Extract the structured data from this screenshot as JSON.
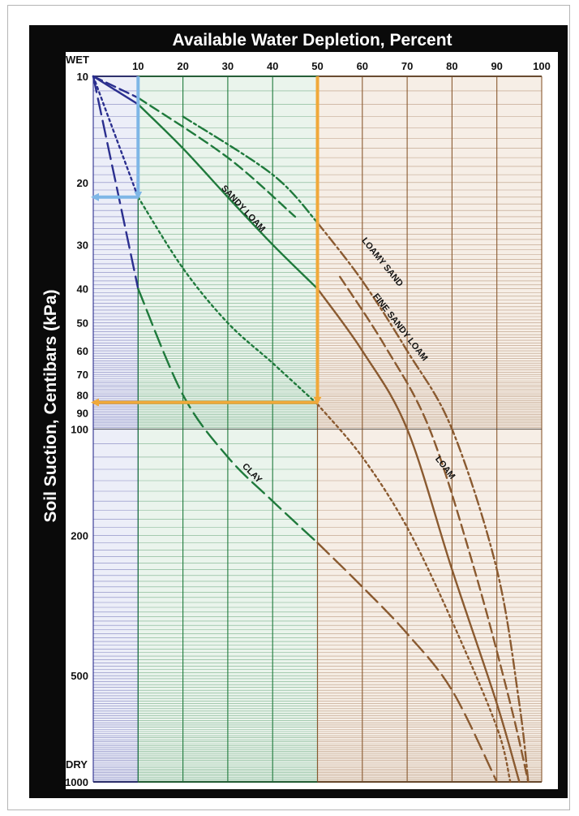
{
  "chart_data": {
    "type": "line",
    "title": "Available Water Depletion, Percent",
    "xlabel": "Available Water Depletion, Percent",
    "ylabel": "Soil Suction, Centibars (kPa)",
    "x_scale": "linear",
    "y_scale": "log",
    "xlim": [
      0,
      100
    ],
    "ylim": [
      10,
      1000
    ],
    "x_ticks": [
      "10",
      "20",
      "30",
      "40",
      "50",
      "60",
      "70",
      "80",
      "90",
      "100"
    ],
    "y_ticks": [
      "10",
      "20",
      "30",
      "40",
      "50",
      "60",
      "70",
      "80",
      "90",
      "100",
      "200",
      "500",
      "1000"
    ],
    "wet_label": "WET",
    "dry_label": "DRY",
    "grid": true,
    "zones": [
      {
        "x_range": [
          0,
          10
        ],
        "color": "#2b2f8f"
      },
      {
        "x_range": [
          10,
          50
        ],
        "color": "#1f7a3c"
      },
      {
        "x_range": [
          50,
          100
        ],
        "color": "#8a5a30"
      }
    ],
    "series": [
      {
        "name": "LOAMY SAND",
        "style": "dash-dot",
        "points": [
          [
            0,
            10
          ],
          [
            20,
            13
          ],
          [
            40,
            19
          ],
          [
            50,
            26
          ],
          [
            60,
            38
          ],
          [
            70,
            60
          ],
          [
            80,
            100
          ],
          [
            90,
            250
          ],
          [
            95,
            600
          ],
          [
            97,
            1000
          ]
        ]
      },
      {
        "name": "FINE SANDY LOAM",
        "style": "dashed",
        "points": [
          [
            0,
            10
          ],
          [
            10,
            11.5
          ],
          [
            30,
            17
          ],
          [
            45,
            25
          ],
          [
            55,
            37
          ],
          [
            65,
            58
          ],
          [
            75,
            100
          ],
          [
            85,
            250
          ],
          [
            93,
            600
          ],
          [
            97,
            1000
          ]
        ]
      },
      {
        "name": "SANDY LOAM",
        "style": "solid",
        "points": [
          [
            0,
            10
          ],
          [
            10,
            12
          ],
          [
            20,
            16
          ],
          [
            30,
            22
          ],
          [
            40,
            30
          ],
          [
            50,
            40
          ],
          [
            60,
            60
          ],
          [
            70,
            100
          ],
          [
            80,
            250
          ],
          [
            90,
            600
          ],
          [
            95,
            1000
          ]
        ]
      },
      {
        "name": "LOAM",
        "style": "dotted",
        "points": [
          [
            0,
            10
          ],
          [
            10,
            22
          ],
          [
            20,
            35
          ],
          [
            30,
            50
          ],
          [
            40,
            65
          ],
          [
            50,
            85
          ],
          [
            60,
            120
          ],
          [
            70,
            190
          ],
          [
            80,
            350
          ],
          [
            90,
            700
          ],
          [
            93,
            1000
          ]
        ]
      },
      {
        "name": "CLAY",
        "style": "long-dash",
        "points": [
          [
            0,
            10
          ],
          [
            5,
            20
          ],
          [
            10,
            40
          ],
          [
            20,
            80
          ],
          [
            30,
            120
          ],
          [
            40,
            160
          ],
          [
            50,
            210
          ],
          [
            60,
            280
          ],
          [
            70,
            380
          ],
          [
            80,
            550
          ],
          [
            90,
            1000
          ]
        ]
      }
    ],
    "annotations": [
      {
        "type": "arrow",
        "color": "#7eb6e6",
        "from": [
          10,
          10
        ],
        "to": [
          10,
          22
        ]
      },
      {
        "type": "arrow",
        "color": "#7eb6e6",
        "from": [
          10,
          22
        ],
        "to": [
          0,
          22
        ]
      },
      {
        "type": "arrow",
        "color": "#f0a93a",
        "from": [
          50,
          10
        ],
        "to": [
          50,
          84
        ]
      },
      {
        "type": "arrow",
        "color": "#f0a93a",
        "from": [
          50,
          84
        ],
        "to": [
          0,
          84
        ]
      }
    ]
  }
}
